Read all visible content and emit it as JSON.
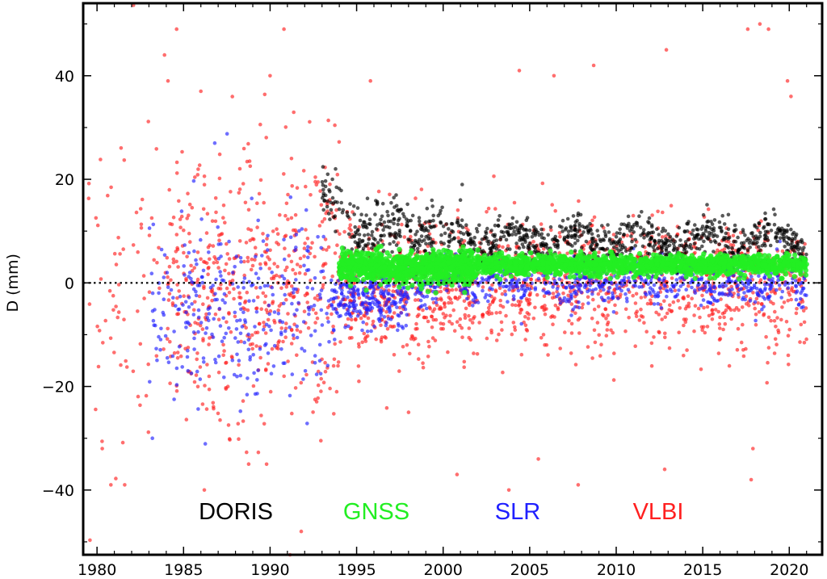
{
  "chart_data": {
    "type": "scatter",
    "title": "",
    "xlabel": "",
    "ylabel": "D (mm)",
    "xlim": [
      1979.2,
      2021.9
    ],
    "ylim": [
      -52.5,
      54.0
    ],
    "xticks": [
      1980,
      1985,
      1990,
      1995,
      2000,
      2005,
      2010,
      2015,
      2020
    ],
    "xtick_labels": [
      "1980",
      "1985",
      "1990",
      "1995",
      "2000",
      "2005",
      "2010",
      "2015",
      "2020"
    ],
    "yticks": [
      -40,
      -20,
      0,
      20,
      40
    ],
    "ytick_labels": [
      "−40",
      "−20",
      "0",
      "20",
      "40"
    ],
    "grid": false,
    "reference_line": {
      "y": 0,
      "style": "dotted"
    },
    "legend_position": "bottom-inside",
    "series": [
      {
        "name": "VLBI",
        "color": "#ff2020",
        "segments": [
          {
            "x_start": 1979.5,
            "x_end": 1984.0,
            "center": 0,
            "spread": 18,
            "count": 70
          },
          {
            "x_start": 1984.0,
            "x_end": 1994.0,
            "center": 0,
            "spread": 13,
            "count": 520
          },
          {
            "x_start": 1994.0,
            "x_end": 2002.0,
            "center": -1,
            "spread": 6,
            "count": 500
          },
          {
            "x_start": 2002.0,
            "x_end": 2021.0,
            "center": 0,
            "spread": 6,
            "count": 900
          }
        ],
        "outliers": [
          [
            1984.6,
            49
          ],
          [
            1983.9,
            44
          ],
          [
            1990.8,
            49
          ],
          [
            1984.1,
            39
          ],
          [
            1986.0,
            37
          ],
          [
            1990.0,
            40
          ],
          [
            1995.8,
            39
          ],
          [
            2004.4,
            41
          ],
          [
            2006.4,
            40
          ],
          [
            2008.7,
            42
          ],
          [
            2012.9,
            45
          ],
          [
            2017.6,
            49
          ],
          [
            2018.3,
            50
          ],
          [
            2018.8,
            49
          ],
          [
            2019.9,
            39
          ],
          [
            2020.1,
            36
          ],
          [
            1980.3,
            -32
          ],
          [
            1980.8,
            -39
          ],
          [
            1981.6,
            -39
          ],
          [
            1986.2,
            -40
          ],
          [
            1989.8,
            -35
          ],
          [
            1991.8,
            -48
          ],
          [
            2000.8,
            -37
          ],
          [
            2003.8,
            -40
          ],
          [
            2007.8,
            -39
          ],
          [
            2012.8,
            -36
          ],
          [
            2017.8,
            -38
          ],
          [
            2017.9,
            -32
          ],
          [
            1998.0,
            -25
          ],
          [
            2005.5,
            -34
          ]
        ]
      },
      {
        "name": "SLR",
        "color": "#2020ff",
        "segments": [
          {
            "x_start": 1983.0,
            "x_end": 1993.5,
            "center": -5,
            "spread": 9,
            "count": 300
          },
          {
            "x_start": 1993.5,
            "x_end": 1998.0,
            "center": -3,
            "spread": 3,
            "count": 260
          },
          {
            "x_start": 1998.0,
            "x_end": 2021.0,
            "center": 0,
            "spread": 2,
            "count": 700
          }
        ],
        "outliers": [
          [
            1986.8,
            27
          ],
          [
            1983.2,
            -30
          ]
        ]
      },
      {
        "name": "DORIS",
        "color": "#000000",
        "segments": [
          {
            "x_start": 1993.0,
            "x_end": 1994.5,
            "center": 15,
            "spread": 2.5,
            "count": 40
          },
          {
            "x_start": 1994.5,
            "x_end": 2000.0,
            "center": 10,
            "spread": 3,
            "count": 220
          },
          {
            "x_start": 2000.0,
            "x_end": 2021.0,
            "center": 8,
            "spread": 2,
            "count": 800
          }
        ],
        "outliers": [
          [
            2001.1,
            19
          ],
          [
            2001.0,
            16
          ],
          [
            1993.6,
            20
          ]
        ]
      },
      {
        "name": "GNSS",
        "color": "#22ee22",
        "segments": [
          {
            "x_start": 1994.0,
            "x_end": 2002.0,
            "center": 3,
            "spread": 1.5,
            "count": 900
          },
          {
            "x_start": 2002.0,
            "x_end": 2021.0,
            "center": 3.5,
            "spread": 0.9,
            "count": 1400
          }
        ],
        "outliers": []
      }
    ],
    "legend": [
      {
        "label": "DORIS",
        "color": "#000000"
      },
      {
        "label": "GNSS",
        "color": "#22ee22"
      },
      {
        "label": "SLR",
        "color": "#2020ff"
      },
      {
        "label": "VLBI",
        "color": "#ff2020"
      }
    ]
  }
}
